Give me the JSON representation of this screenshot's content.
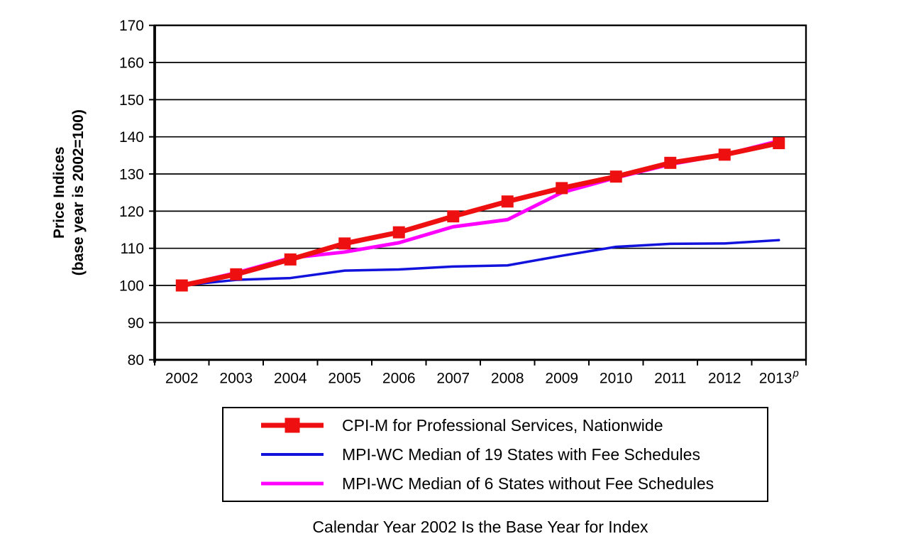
{
  "chart_data": {
    "type": "line",
    "title": "",
    "xlabel": "",
    "ylabel": "Price Indices (base year is 2002=100)",
    "ylabel_line1": "Price Indices",
    "ylabel_line2": "(base year is 2002=100)",
    "caption": "Calendar Year 2002 Is the Base Year for Index",
    "categories": [
      "2002",
      "2003",
      "2004",
      "2005",
      "2006",
      "2007",
      "2008",
      "2009",
      "2010",
      "2011",
      "2012",
      "2013"
    ],
    "last_category_superscript": "p",
    "ylim": [
      80,
      170
    ],
    "ytick_step": 10,
    "yticks": [
      80,
      90,
      100,
      110,
      120,
      130,
      140,
      150,
      160,
      170
    ],
    "grid": "horizontal-gridlines",
    "legend_position": "boxed-below-chart",
    "axis_color": "#000000",
    "series": [
      {
        "name": "CPI-M for Professional Services, Nationwide",
        "color": "#ee1010",
        "marker": "square",
        "line_width": 7,
        "values": [
          100,
          103,
          107,
          111.3,
          114.3,
          118.6,
          122.6,
          126.2,
          129.3,
          133,
          135.2,
          138.3
        ]
      },
      {
        "name": "MPI-WC Median of 19 States with Fee Schedules",
        "color": "#1212dd",
        "marker": "none",
        "line_width": 3.5,
        "values": [
          100,
          101.5,
          102,
          104,
          104.3,
          105.1,
          105.4,
          108,
          110.4,
          111.2,
          111.3,
          112.2
        ]
      },
      {
        "name": "MPI-WC Median of 6 States without Fee Schedules",
        "color": "#ff00ff",
        "marker": "none",
        "line_width": 5,
        "values": [
          100,
          103.4,
          107.4,
          109,
          111.5,
          115.8,
          117.7,
          125,
          129,
          132.6,
          135.2,
          138.9
        ]
      }
    ]
  }
}
